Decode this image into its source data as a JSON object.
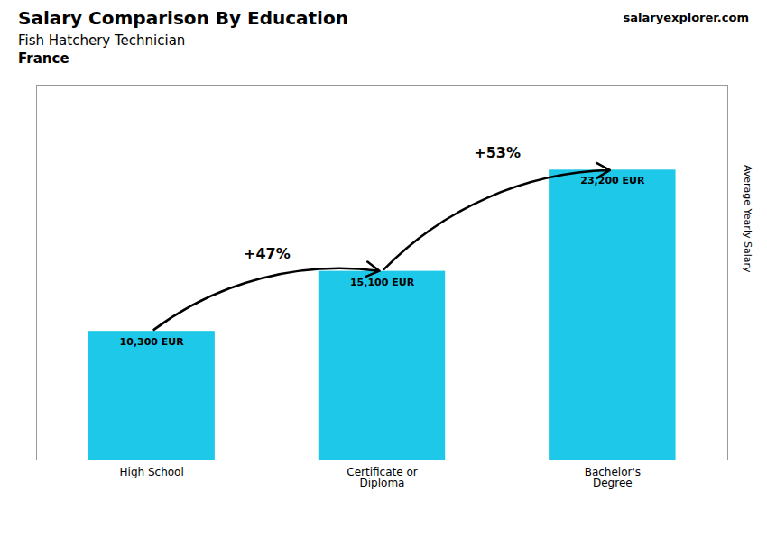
{
  "chart_data": {
    "type": "bar",
    "title": "Salary Comparison By Education",
    "subtitle": "Fish Hatchery Technician",
    "country": "France",
    "caption": "salaryexplorer.com",
    "ylabel": "Average Yearly Salary",
    "categories": [
      "High School",
      "Certificate or\nDiploma",
      "Bachelor's\nDegree"
    ],
    "values": [
      10300,
      15100,
      23200
    ],
    "value_labels": [
      "10,300 EUR",
      "15,100 EUR",
      "23,200 EUR"
    ],
    "data_labels": true,
    "annotations": [
      "+47%",
      "+53%"
    ],
    "color": "#1ec8e8",
    "ylim": [
      0,
      30000
    ],
    "grid": false,
    "tick_labels": "x"
  }
}
